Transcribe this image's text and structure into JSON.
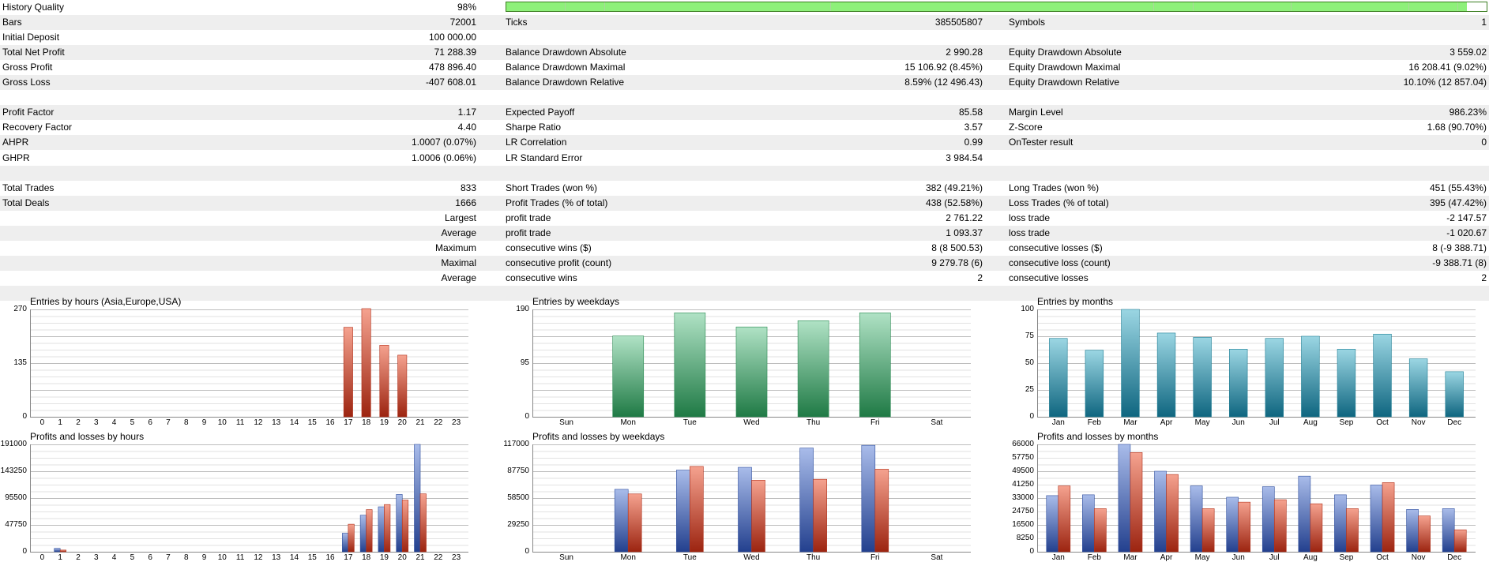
{
  "history_quality": {
    "label": "History Quality",
    "value": "98%",
    "fill_fraction": 0.98
  },
  "stats": [
    {
      "cells": [
        {
          "label": "Bars",
          "value": "72001"
        },
        {
          "label": "Ticks",
          "value": "385505807"
        },
        {
          "label": "Symbols",
          "value": "1"
        }
      ]
    },
    {
      "cells": [
        {
          "label": "Initial Deposit",
          "value": "100 000.00"
        }
      ]
    },
    {
      "cells": [
        {
          "label": "Total Net Profit",
          "value": "71 288.39"
        },
        {
          "label": "Balance Drawdown Absolute",
          "value": "2 990.28"
        },
        {
          "label": "Equity Drawdown Absolute",
          "value": "3 559.02"
        }
      ]
    },
    {
      "cells": [
        {
          "label": "Gross Profit",
          "value": "478 896.40"
        },
        {
          "label": "Balance Drawdown Maximal",
          "value": "15 106.92 (8.45%)"
        },
        {
          "label": "Equity Drawdown Maximal",
          "value": "16 208.41 (9.02%)"
        }
      ]
    },
    {
      "cells": [
        {
          "label": "Gross Loss",
          "value": "-407 608.01"
        },
        {
          "label": "Balance Drawdown Relative",
          "value": "8.59% (12 496.43)"
        },
        {
          "label": "Equity Drawdown Relative",
          "value": "10.10% (12 857.04)"
        }
      ]
    },
    {
      "cells": []
    },
    {
      "cells": [
        {
          "label": "Profit Factor",
          "value": "1.17"
        },
        {
          "label": "Expected Payoff",
          "value": "85.58"
        },
        {
          "label": "Margin Level",
          "value": "986.23%"
        }
      ]
    },
    {
      "cells": [
        {
          "label": "Recovery Factor",
          "value": "4.40"
        },
        {
          "label": "Sharpe Ratio",
          "value": "3.57"
        },
        {
          "label": "Z-Score",
          "value": "1.68 (90.70%)"
        }
      ]
    },
    {
      "cells": [
        {
          "label": "AHPR",
          "value": "1.0007 (0.07%)"
        },
        {
          "label": "LR Correlation",
          "value": "0.99"
        },
        {
          "label": "OnTester result",
          "value": "0"
        }
      ]
    },
    {
      "cells": [
        {
          "label": "GHPR",
          "value": "1.0006 (0.06%)"
        },
        {
          "label": "LR Standard Error",
          "value": "3 984.54"
        }
      ]
    },
    {
      "cells": []
    },
    {
      "cells": [
        {
          "label": "Total Trades",
          "value": "833"
        },
        {
          "label": "Short Trades (won %)",
          "value": "382 (49.21%)"
        },
        {
          "label": "Long Trades (won %)",
          "value": "451 (55.43%)"
        }
      ]
    },
    {
      "cells": [
        {
          "label": "Total Deals",
          "value": "1666"
        },
        {
          "label": "Profit Trades (% of total)",
          "value": "438 (52.58%)"
        },
        {
          "label": "Loss Trades (% of total)",
          "value": "395 (47.42%)"
        }
      ]
    },
    {
      "prefix": "Largest",
      "cells": [
        {
          "label": "profit trade",
          "value": "2 761.22"
        },
        {
          "label": "loss trade",
          "value": "-2 147.57"
        }
      ]
    },
    {
      "prefix": "Average",
      "cells": [
        {
          "label": "profit trade",
          "value": "1 093.37"
        },
        {
          "label": "loss trade",
          "value": "-1 020.67"
        }
      ]
    },
    {
      "prefix": "Maximum",
      "cells": [
        {
          "label": "consecutive wins ($)",
          "value": "8 (8 500.53)"
        },
        {
          "label": "consecutive losses ($)",
          "value": "8 (-9 388.71)"
        }
      ]
    },
    {
      "prefix": "Maximal",
      "cells": [
        {
          "label": "consecutive profit (count)",
          "value": "9 279.78 (6)"
        },
        {
          "label": "consecutive loss (count)",
          "value": "-9 388.71 (8)"
        }
      ]
    },
    {
      "prefix": "Average",
      "cells": [
        {
          "label": "consecutive wins",
          "value": "2"
        },
        {
          "label": "consecutive losses",
          "value": "2"
        }
      ]
    },
    {
      "cells": []
    }
  ],
  "colors": {
    "red": "#b0301a",
    "blue": "#2f4f9e",
    "green": "#2a8a52",
    "teal": "#1f7e94"
  },
  "chart_data": [
    {
      "id": "hours-entries",
      "type": "bar",
      "title": "Entries by hours (Asia,Europe,USA)",
      "categories": [
        "0",
        "1",
        "2",
        "3",
        "4",
        "5",
        "6",
        "7",
        "8",
        "9",
        "10",
        "11",
        "12",
        "13",
        "14",
        "15",
        "16",
        "17",
        "18",
        "19",
        "20",
        "21",
        "22",
        "23"
      ],
      "series": [
        {
          "values": [
            0,
            0,
            0,
            0,
            0,
            0,
            0,
            0,
            0,
            0,
            0,
            0,
            0,
            0,
            0,
            0,
            0,
            225,
            272,
            180,
            155,
            0,
            0,
            0
          ],
          "color": "red"
        }
      ],
      "ylim": [
        0,
        270
      ],
      "yticks": [
        "270",
        "135",
        "0"
      ]
    },
    {
      "id": "weekday-entries",
      "type": "bar",
      "title": "Entries by weekdays",
      "categories": [
        "Sun",
        "Mon",
        "Tue",
        "Wed",
        "Thu",
        "Fri",
        "Sat"
      ],
      "series": [
        {
          "values": [
            0,
            143,
            184,
            159,
            170,
            184,
            0
          ],
          "color": "green"
        }
      ],
      "ylim": [
        0,
        190
      ],
      "yticks": [
        "190",
        "95",
        "0"
      ]
    },
    {
      "id": "month-entries",
      "type": "bar",
      "title": "Entries by months",
      "categories": [
        "Jan",
        "Feb",
        "Mar",
        "Apr",
        "May",
        "Jun",
        "Jul",
        "Aug",
        "Sep",
        "Oct",
        "Nov",
        "Dec"
      ],
      "series": [
        {
          "values": [
            73,
            62,
            100,
            78,
            74,
            63,
            73,
            75,
            63,
            77,
            54,
            42
          ],
          "color": "teal"
        }
      ],
      "ylim": [
        0,
        100
      ],
      "yticks": [
        "100",
        "75",
        "50",
        "25",
        "0"
      ]
    },
    {
      "id": "hours-pl",
      "type": "bar",
      "title": "Profits and losses by hours",
      "categories": [
        "0",
        "1",
        "2",
        "3",
        "4",
        "5",
        "6",
        "7",
        "8",
        "9",
        "10",
        "11",
        "12",
        "13",
        "14",
        "15",
        "16",
        "17",
        "18",
        "19",
        "20",
        "21",
        "22",
        "23"
      ],
      "series": [
        {
          "values": [
            0,
            6000,
            0,
            0,
            0,
            0,
            0,
            0,
            0,
            0,
            0,
            0,
            0,
            0,
            0,
            0,
            0,
            33000,
            65000,
            80000,
            102000,
            191000,
            0,
            0
          ],
          "color": "blue"
        },
        {
          "values": [
            0,
            3000,
            0,
            0,
            0,
            0,
            0,
            0,
            0,
            0,
            0,
            0,
            0,
            0,
            0,
            0,
            0,
            49000,
            75000,
            84000,
            92000,
            103000,
            0,
            0
          ],
          "color": "red"
        }
      ],
      "ylim": [
        0,
        191000
      ],
      "yticks": [
        "191000",
        "143250",
        "95500",
        "47750",
        "0"
      ]
    },
    {
      "id": "weekday-pl",
      "type": "bar",
      "title": "Profits and losses by weekdays",
      "categories": [
        "Sun",
        "Mon",
        "Tue",
        "Wed",
        "Thu",
        "Fri",
        "Sat"
      ],
      "series": [
        {
          "values": [
            0,
            68000,
            89000,
            92000,
            113000,
            116000,
            0
          ],
          "color": "blue"
        },
        {
          "values": [
            0,
            63000,
            93000,
            78000,
            79000,
            90000,
            0
          ],
          "color": "red"
        }
      ],
      "ylim": [
        0,
        117000
      ],
      "yticks": [
        "117000",
        "87750",
        "58500",
        "29250",
        "0"
      ]
    },
    {
      "id": "month-pl",
      "type": "bar",
      "title": "Profits and losses by months",
      "categories": [
        "Jan",
        "Feb",
        "Mar",
        "Apr",
        "May",
        "Jun",
        "Jul",
        "Aug",
        "Sep",
        "Oct",
        "Nov",
        "Dec"
      ],
      "series": [
        {
          "values": [
            34500,
            35000,
            66000,
            49500,
            40500,
            33500,
            40000,
            46500,
            35000,
            41000,
            26000,
            26500
          ],
          "color": "blue"
        },
        {
          "values": [
            40500,
            26500,
            61000,
            47500,
            26500,
            30500,
            32000,
            29500,
            26500,
            42500,
            22000,
            13500
          ],
          "color": "red"
        }
      ],
      "ylim": [
        0,
        66000
      ],
      "yticks": [
        "66000",
        "57750",
        "49500",
        "41250",
        "33000",
        "24750",
        "16500",
        "8250",
        "0"
      ]
    }
  ]
}
